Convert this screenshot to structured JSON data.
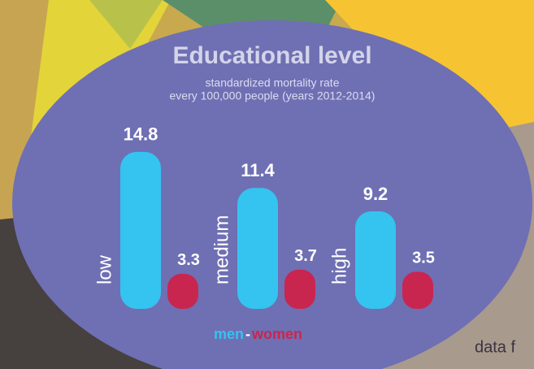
{
  "chart_data": {
    "type": "bar",
    "title": "Educational level",
    "subtitle": [
      "standardized mortality rate",
      "every 100,000 people (years 2012-2014)"
    ],
    "categories": [
      "low",
      "medium",
      "high"
    ],
    "series": [
      {
        "name": "men",
        "color": "#35c3ef",
        "values": [
          14.8,
          11.4,
          9.2
        ]
      },
      {
        "name": "women",
        "color": "#c8264f",
        "values": [
          3.3,
          3.7,
          3.5
        ]
      }
    ],
    "legend_separator": "-",
    "footer_text": "data f"
  }
}
